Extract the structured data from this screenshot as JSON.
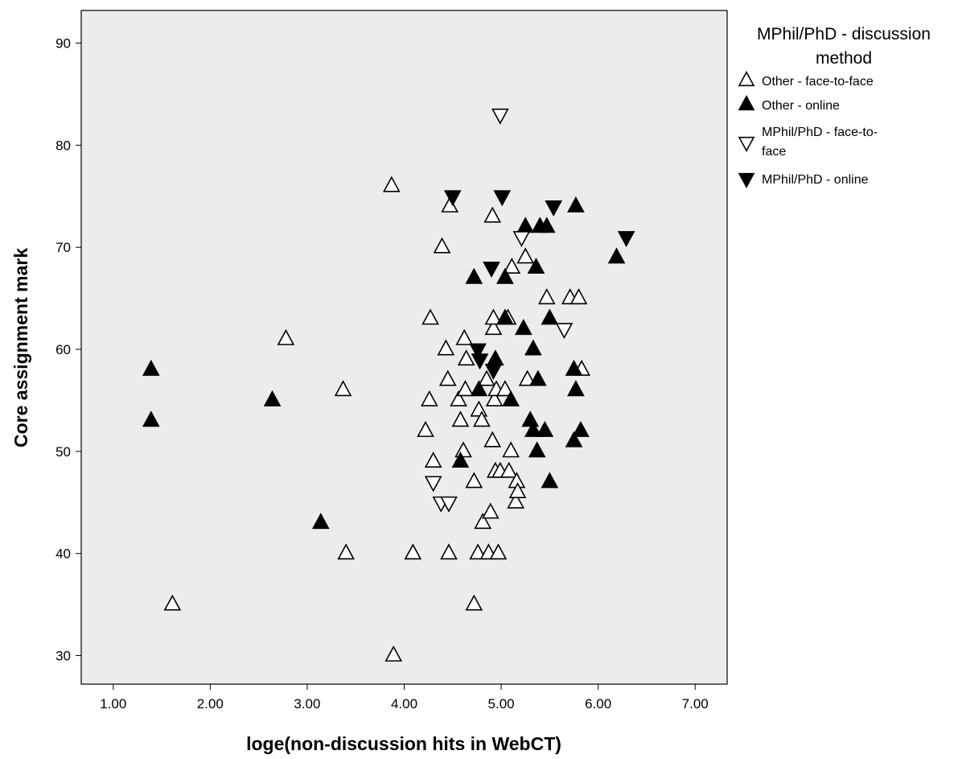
{
  "chart_data": {
    "type": "scatter",
    "xlabel": "loge(non-discussion hits in WebCT)",
    "ylabel": "Core assignment mark",
    "xlim": [
      0.67,
      7.33
    ],
    "ylim": [
      27.2,
      93.2
    ],
    "xticks": [
      "1.00",
      "2.00",
      "3.00",
      "4.00",
      "5.00",
      "6.00",
      "7.00"
    ],
    "yticks": [
      "30",
      "40",
      "50",
      "60",
      "70",
      "80",
      "90"
    ],
    "xtick_values": [
      1,
      2,
      3,
      4,
      5,
      6,
      7
    ],
    "ytick_values": [
      30,
      40,
      50,
      60,
      70,
      80,
      90
    ],
    "plot_background": "#ececec",
    "grid": false,
    "legend": {
      "position": "right",
      "title": "MPhil/PhD - discussion method"
    },
    "series": [
      {
        "name": "Other - face-to-face",
        "marker": "triangle-up-open",
        "points": [
          [
            1.61,
            35
          ],
          [
            2.78,
            61
          ],
          [
            3.37,
            56
          ],
          [
            3.4,
            40
          ],
          [
            3.87,
            76
          ],
          [
            3.89,
            30
          ],
          [
            4.09,
            40
          ],
          [
            4.22,
            52
          ],
          [
            4.26,
            55
          ],
          [
            4.27,
            63
          ],
          [
            4.3,
            49
          ],
          [
            4.39,
            70
          ],
          [
            4.43,
            60
          ],
          [
            4.45,
            57
          ],
          [
            4.46,
            40
          ],
          [
            4.47,
            74
          ],
          [
            4.56,
            55
          ],
          [
            4.58,
            53
          ],
          [
            4.61,
            50
          ],
          [
            4.62,
            61
          ],
          [
            4.63,
            56
          ],
          [
            4.64,
            59
          ],
          [
            4.72,
            47
          ],
          [
            4.72,
            35
          ],
          [
            4.76,
            40
          ],
          [
            4.77,
            54
          ],
          [
            4.8,
            53
          ],
          [
            4.81,
            43
          ],
          [
            4.85,
            57
          ],
          [
            4.87,
            40
          ],
          [
            4.89,
            44
          ],
          [
            4.91,
            51
          ],
          [
            4.91,
            73
          ],
          [
            4.92,
            62
          ],
          [
            4.92,
            63
          ],
          [
            4.93,
            55
          ],
          [
            4.94,
            48
          ],
          [
            4.95,
            56
          ],
          [
            4.97,
            40
          ],
          [
            4.99,
            48
          ],
          [
            5.04,
            56
          ],
          [
            5.07,
            63
          ],
          [
            5.08,
            48
          ],
          [
            5.1,
            50
          ],
          [
            5.11,
            68
          ],
          [
            5.15,
            45
          ],
          [
            5.16,
            47
          ],
          [
            5.17,
            46
          ],
          [
            5.25,
            69
          ],
          [
            5.27,
            57
          ],
          [
            5.47,
            65
          ],
          [
            5.71,
            65
          ],
          [
            5.8,
            65
          ],
          [
            5.83,
            58
          ]
        ]
      },
      {
        "name": "Other - online",
        "marker": "triangle-up-filled",
        "points": [
          [
            1.39,
            58
          ],
          [
            1.39,
            53
          ],
          [
            2.64,
            55
          ],
          [
            3.14,
            43
          ],
          [
            4.58,
            49
          ],
          [
            4.72,
            67
          ],
          [
            4.77,
            56
          ],
          [
            4.94,
            59
          ],
          [
            5.04,
            67
          ],
          [
            5.04,
            63
          ],
          [
            5.1,
            55
          ],
          [
            5.23,
            62
          ],
          [
            5.25,
            72
          ],
          [
            5.3,
            53
          ],
          [
            5.33,
            60
          ],
          [
            5.33,
            52
          ],
          [
            5.36,
            68
          ],
          [
            5.37,
            50
          ],
          [
            5.38,
            57
          ],
          [
            5.4,
            72
          ],
          [
            5.45,
            52
          ],
          [
            5.47,
            72
          ],
          [
            5.5,
            63
          ],
          [
            5.5,
            47
          ],
          [
            5.75,
            51
          ],
          [
            5.75,
            58
          ],
          [
            5.77,
            56
          ],
          [
            5.77,
            74
          ],
          [
            5.82,
            52
          ],
          [
            6.19,
            69
          ]
        ]
      },
      {
        "name": "MPhil/PhD - face-to-face",
        "marker": "triangle-down-open",
        "points": [
          [
            4.3,
            47
          ],
          [
            4.38,
            45
          ],
          [
            4.46,
            45
          ],
          [
            4.99,
            83
          ],
          [
            5.21,
            71
          ],
          [
            5.65,
            62
          ]
        ]
      },
      {
        "name": "MPhil/PhD - online",
        "marker": "triangle-down-filled",
        "points": [
          [
            4.5,
            75
          ],
          [
            4.76,
            60
          ],
          [
            4.78,
            59
          ],
          [
            4.9,
            68
          ],
          [
            4.92,
            58
          ],
          [
            5.01,
            75
          ],
          [
            5.54,
            74
          ],
          [
            6.29,
            71
          ]
        ]
      }
    ]
  }
}
